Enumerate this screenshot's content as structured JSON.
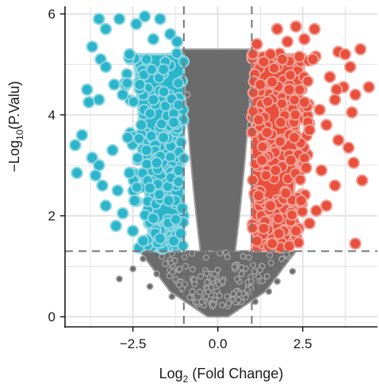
{
  "chart_data": {
    "type": "scatter",
    "title": "",
    "xlabel": {
      "base": "Log",
      "sub": "2",
      "rest": " (Fold Change)"
    },
    "ylabel": {
      "pre": "−Log",
      "sub": "10",
      "rest": "(P.Valu)"
    },
    "xlim": [
      -4.5,
      4.7
    ],
    "ylim": [
      -0.2,
      6.15
    ],
    "x_ticks": [
      -2.5,
      0.0,
      2.5
    ],
    "x_tick_labels": [
      "−2.5",
      "0.0",
      "2.5"
    ],
    "y_ticks": [
      0,
      2,
      4,
      6
    ],
    "y_tick_labels": [
      "0",
      "2",
      "4",
      "6"
    ],
    "grid": true,
    "thresholds": {
      "fold_change_x": [
        -1,
        1
      ],
      "p_value_y": 1.3
    },
    "colors": {
      "down": "#2bb5cb",
      "up": "#e94f3c",
      "not_significant": "#6b6b6b",
      "threshold_line": "#777777",
      "grid": "#e3e3e3"
    },
    "series": [
      {
        "group": "down",
        "points": [
          [
            -3.5,
            5.9
          ],
          [
            -2.9,
            5.9
          ],
          [
            -3.3,
            5.7
          ],
          [
            -2.4,
            5.8
          ],
          [
            -3.7,
            5.35
          ],
          [
            -3.45,
            5.1
          ],
          [
            -2.15,
            5.95
          ],
          [
            -1.7,
            5.9
          ],
          [
            -1.4,
            5.6
          ],
          [
            -1.2,
            5.45
          ],
          [
            -3.3,
            4.95
          ],
          [
            -3.05,
            4.6
          ],
          [
            -3.85,
            4.5
          ],
          [
            -3.8,
            4.25
          ],
          [
            -3.5,
            4.3
          ],
          [
            -2.8,
            4.4
          ],
          [
            -2.3,
            4.6
          ],
          [
            -1.9,
            4.3
          ],
          [
            -4.0,
            3.6
          ],
          [
            -4.2,
            3.4
          ],
          [
            -3.7,
            3.15
          ],
          [
            -3.5,
            3.0
          ],
          [
            -3.1,
            3.3
          ],
          [
            -2.65,
            3.55
          ],
          [
            -2.25,
            3.8
          ],
          [
            -1.6,
            3.55
          ],
          [
            -1.3,
            3.85
          ],
          [
            -4.15,
            2.85
          ],
          [
            -3.6,
            2.8
          ],
          [
            -2.95,
            2.5
          ],
          [
            -2.45,
            2.3
          ],
          [
            -2.8,
            2.05
          ],
          [
            -3.3,
            2.2
          ],
          [
            -2.0,
            2.55
          ],
          [
            -1.45,
            2.3
          ],
          [
            -1.15,
            2.9
          ],
          [
            -3.0,
            1.8
          ],
          [
            -2.5,
            1.7
          ],
          [
            -1.9,
            1.95
          ],
          [
            -2.2,
            1.5
          ],
          [
            -1.7,
            1.55
          ],
          [
            -1.3,
            1.5
          ],
          [
            -1.1,
            1.65
          ],
          [
            -1.05,
            2.15
          ],
          [
            -1.15,
            4.2
          ],
          [
            -1.6,
            4.9
          ],
          [
            -2.6,
            5.2
          ],
          [
            -1.9,
            5.5
          ],
          [
            -2.6,
            2.85
          ],
          [
            -3.4,
            2.6
          ],
          [
            -1.8,
            3.05
          ],
          [
            -2.1,
            3.3
          ]
        ]
      },
      {
        "group": "up",
        "points": [
          [
            1.75,
            5.7
          ],
          [
            2.3,
            5.75
          ],
          [
            2.85,
            5.7
          ],
          [
            2.55,
            5.5
          ],
          [
            1.55,
            5.2
          ],
          [
            1.35,
            5.05
          ],
          [
            1.9,
            5.1
          ],
          [
            2.4,
            5.15
          ],
          [
            2.8,
            5.1
          ],
          [
            3.55,
            5.25
          ],
          [
            3.75,
            5.2
          ],
          [
            3.9,
            4.95
          ],
          [
            3.3,
            4.75
          ],
          [
            4.2,
            5.3
          ],
          [
            4.45,
            4.55
          ],
          [
            4.05,
            4.4
          ],
          [
            3.7,
            4.55
          ],
          [
            3.5,
            4.5
          ],
          [
            1.25,
            4.6
          ],
          [
            1.6,
            4.65
          ],
          [
            2.1,
            4.5
          ],
          [
            2.55,
            4.25
          ],
          [
            3.0,
            4.1
          ],
          [
            3.45,
            4.3
          ],
          [
            3.95,
            4.05
          ],
          [
            1.2,
            3.9
          ],
          [
            1.45,
            3.65
          ],
          [
            1.85,
            3.85
          ],
          [
            2.25,
            3.55
          ],
          [
            2.7,
            3.7
          ],
          [
            3.2,
            3.8
          ],
          [
            3.55,
            3.5
          ],
          [
            3.85,
            3.35
          ],
          [
            4.0,
            3.05
          ],
          [
            1.3,
            3.1
          ],
          [
            1.7,
            2.9
          ],
          [
            2.15,
            3.1
          ],
          [
            2.6,
            2.95
          ],
          [
            3.05,
            2.9
          ],
          [
            3.45,
            2.6
          ],
          [
            4.25,
            2.7
          ],
          [
            1.2,
            2.4
          ],
          [
            1.55,
            2.2
          ],
          [
            2.0,
            2.45
          ],
          [
            2.45,
            2.3
          ],
          [
            2.9,
            2.1
          ],
          [
            3.2,
            2.2
          ],
          [
            1.35,
            1.75
          ],
          [
            1.8,
            1.65
          ],
          [
            2.3,
            1.7
          ],
          [
            2.7,
            1.85
          ],
          [
            1.15,
            1.5
          ],
          [
            1.6,
            1.45
          ],
          [
            2.1,
            1.4
          ],
          [
            4.05,
            1.45
          ],
          [
            1.15,
            5.4
          ],
          [
            2.05,
            5.45
          ]
        ]
      },
      {
        "group": "not_significant",
        "points": [
          [
            -2.9,
            0.75
          ],
          [
            -2.5,
            0.95
          ],
          [
            -2.2,
            1.15
          ],
          [
            -2.0,
            0.6
          ],
          [
            -1.8,
            0.85
          ],
          [
            -1.55,
            1.05
          ],
          [
            -1.35,
            0.4
          ],
          [
            -1.2,
            0.7
          ],
          [
            2.2,
            0.9
          ],
          [
            2.05,
            1.2
          ],
          [
            1.75,
            0.7
          ],
          [
            1.5,
            0.5
          ],
          [
            1.3,
            1.0
          ],
          [
            1.1,
            0.3
          ],
          [
            0.9,
            0.6
          ],
          [
            -0.95,
            1.0
          ],
          [
            -0.75,
            0.5
          ],
          [
            -0.6,
            0.25
          ],
          [
            0.7,
            0.85
          ],
          [
            0.55,
            0.4
          ],
          [
            -1.0,
            5.0
          ],
          [
            -0.9,
            4.4
          ],
          [
            0.95,
            3.8
          ],
          [
            1.0,
            4.3
          ]
        ]
      }
    ]
  }
}
